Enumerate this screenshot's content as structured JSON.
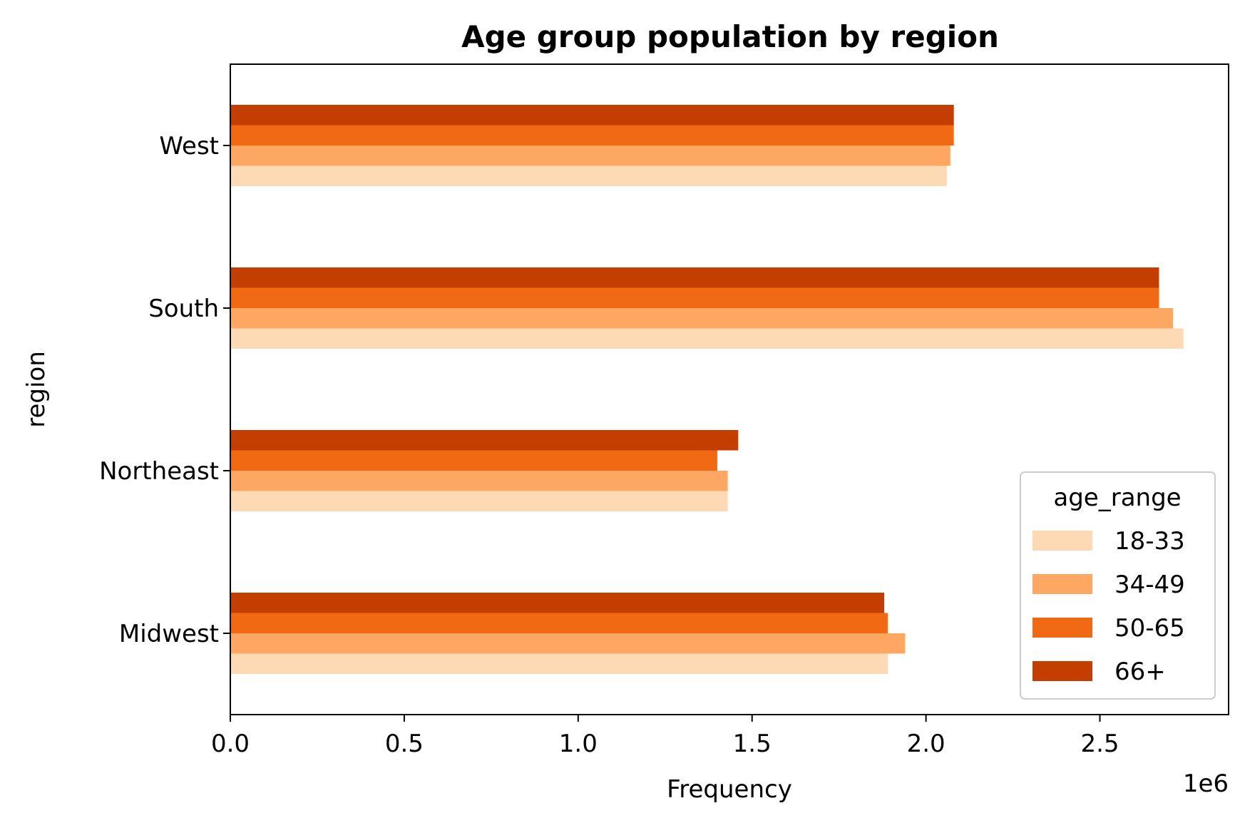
{
  "chart_data": {
    "type": "bar",
    "orientation": "horizontal",
    "title": "Age group population by region",
    "xlabel": "Frequency",
    "ylabel": "region",
    "x_offset_label": "1e6",
    "xlim": [
      0,
      2.87
    ],
    "xticks": [
      "0.0",
      "0.5",
      "1.0",
      "1.5",
      "2.0",
      "2.5"
    ],
    "categories": [
      "Midwest",
      "Northeast",
      "South",
      "West"
    ],
    "legend": {
      "title": "age_range",
      "position": "lower-right"
    },
    "grid": false,
    "series": [
      {
        "name": "18-33",
        "color": "#fdd9b4",
        "values": [
          1.89,
          1.43,
          2.74,
          2.06
        ]
      },
      {
        "name": "34-49",
        "color": "#fda762",
        "values": [
          1.94,
          1.43,
          2.71,
          2.07
        ]
      },
      {
        "name": "50-65",
        "color": "#f16913",
        "values": [
          1.89,
          1.4,
          2.67,
          2.08
        ]
      },
      {
        "name": "66+",
        "color": "#c43e02",
        "values": [
          1.88,
          1.46,
          2.67,
          2.08
        ]
      }
    ]
  }
}
